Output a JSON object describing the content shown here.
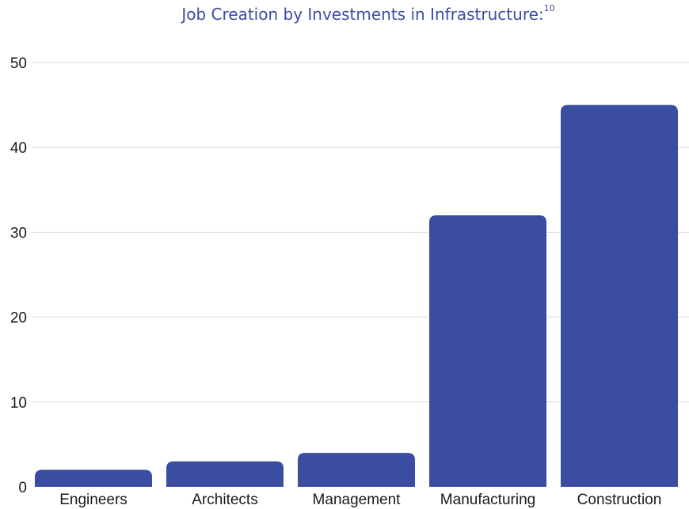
{
  "chart_data": {
    "type": "bar",
    "title": "Job Creation by Investments in Infrastructure:",
    "title_superscript": "10",
    "categories": [
      "Engineers",
      "Architects",
      "Management",
      "Manufacturing",
      "Construction"
    ],
    "values": [
      2,
      3,
      4,
      32,
      45
    ],
    "ylim": [
      0,
      50
    ],
    "yticks": [
      "0",
      "10",
      "20",
      "30",
      "40",
      "50"
    ],
    "grid": true,
    "bar_color": "#3a4da0",
    "gridline_color": "#d9d9d9"
  }
}
